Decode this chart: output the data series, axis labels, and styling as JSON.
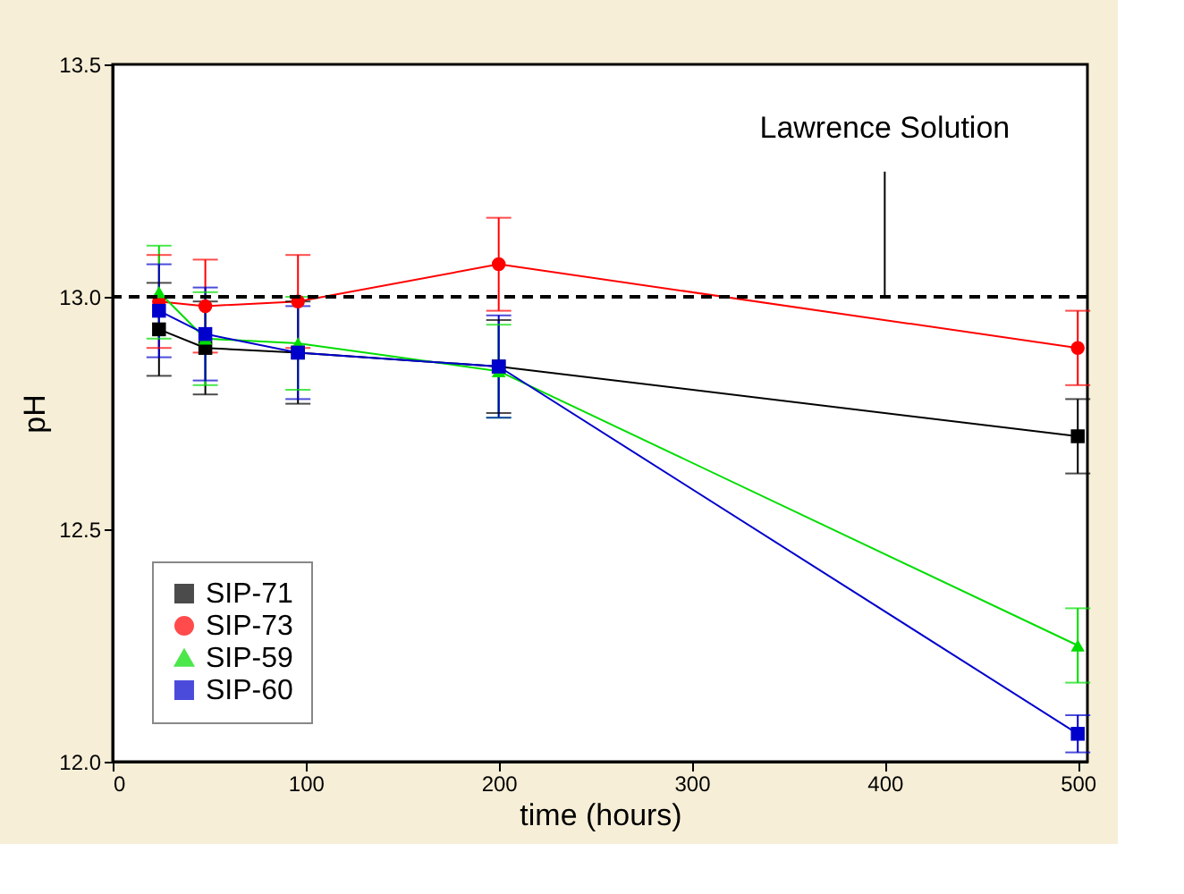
{
  "chart_data": {
    "type": "line",
    "xlabel": "time (hours)",
    "ylabel": "pH",
    "x": [
      24,
      48,
      96,
      200,
      500
    ],
    "series": [
      {
        "name": "SIP-71",
        "color": "#000000",
        "marker": "square",
        "values": [
          12.93,
          12.89,
          12.88,
          12.85,
          12.7
        ],
        "errors": [
          0.1,
          0.1,
          0.11,
          0.1,
          0.08
        ]
      },
      {
        "name": "SIP-73",
        "color": "#ff0000",
        "marker": "circle",
        "values": [
          12.99,
          12.98,
          12.99,
          13.07,
          12.89
        ],
        "errors": [
          0.1,
          0.1,
          0.1,
          0.1,
          0.08
        ]
      },
      {
        "name": "SIP-59",
        "color": "#00dd00",
        "marker": "triangle",
        "values": [
          13.01,
          12.91,
          12.9,
          12.84,
          12.25
        ],
        "errors": [
          0.1,
          0.1,
          0.1,
          0.1,
          0.08
        ]
      },
      {
        "name": "SIP-60",
        "color": "#0000cc",
        "marker": "square",
        "values": [
          12.97,
          12.92,
          12.88,
          12.85,
          12.06
        ],
        "errors": [
          0.1,
          0.1,
          0.1,
          0.11,
          0.04
        ]
      }
    ],
    "xlim": [
      0,
      505
    ],
    "xticks": [
      0,
      100,
      200,
      300,
      400,
      500
    ],
    "ylim": [
      12.0,
      13.5
    ],
    "yticks": [
      {
        "value": 12.0,
        "label": "12.0"
      },
      12.5,
      {
        "value": 13.0,
        "label": "13.0"
      },
      13.5
    ],
    "ref_lines": [
      {
        "axis": "y",
        "value": 13.0,
        "color": "#000000",
        "line_style": "dashed"
      }
    ],
    "annotations": [
      {
        "text": "Lawrence Solution",
        "x": 400,
        "y": 13.0
      }
    ],
    "legend": "bottom left",
    "grid": false
  }
}
